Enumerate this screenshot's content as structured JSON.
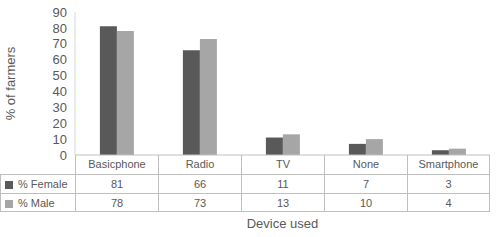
{
  "chart_data": {
    "type": "bar",
    "categories": [
      "Basicphone",
      "Radio",
      "TV",
      "None",
      "Smartphone"
    ],
    "series": [
      {
        "name": "% Female",
        "color": "#595959",
        "values": [
          81,
          66,
          11,
          7,
          3
        ]
      },
      {
        "name": "% Male",
        "color": "#a6a6a6",
        "values": [
          78,
          73,
          13,
          10,
          4
        ]
      }
    ],
    "ylim": [
      0,
      90
    ],
    "yticks": [
      0,
      10,
      20,
      30,
      40,
      50,
      60,
      70,
      80,
      90
    ],
    "y_label": "% of farmers",
    "x_label": "Device used",
    "grid": false
  }
}
